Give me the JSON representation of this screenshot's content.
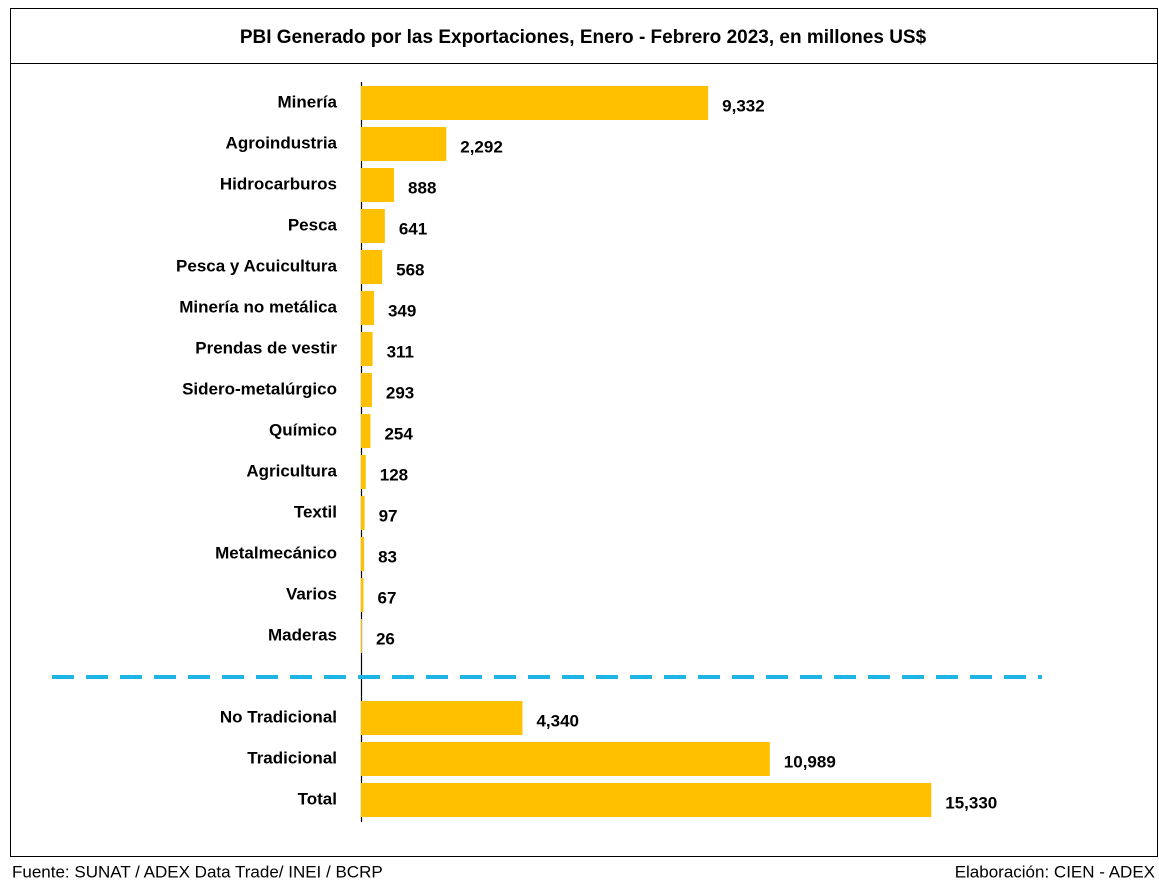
{
  "chart_data": {
    "type": "bar",
    "orientation": "horizontal",
    "title": "PBI Generado por las Exportaciones, Enero - Febrero 2023, en millones US$",
    "categories": [
      "Minería",
      "Agroindustria",
      "Hidrocarburos",
      "Pesca",
      "Pesca y Acuicultura",
      "Minería no metálica",
      "Prendas de vestir",
      "Sidero-metalúrgico",
      "Químico",
      "Agricultura",
      "Textil",
      "Metalmecánico",
      "Varios",
      "Maderas",
      null,
      "No Tradicional",
      "Tradicional",
      "Total"
    ],
    "values": [
      9332,
      2292,
      888,
      641,
      568,
      349,
      311,
      293,
      254,
      128,
      97,
      83,
      67,
      26,
      null,
      4340,
      10989,
      15330
    ],
    "value_labels": [
      "9,332",
      "2,292",
      "888",
      "641",
      "568",
      "349",
      "311",
      "293",
      "254",
      "128",
      "97",
      "83",
      "67",
      "26",
      null,
      "4,340",
      "10,989",
      "15,330"
    ],
    "color": "#ffc000",
    "xlim": [
      0,
      20000
    ],
    "source": "Fuente: SUNAT / ADEX Data Trade/ INEI / BCRP",
    "credit": "Elaboración: CIEN - ADEX"
  }
}
